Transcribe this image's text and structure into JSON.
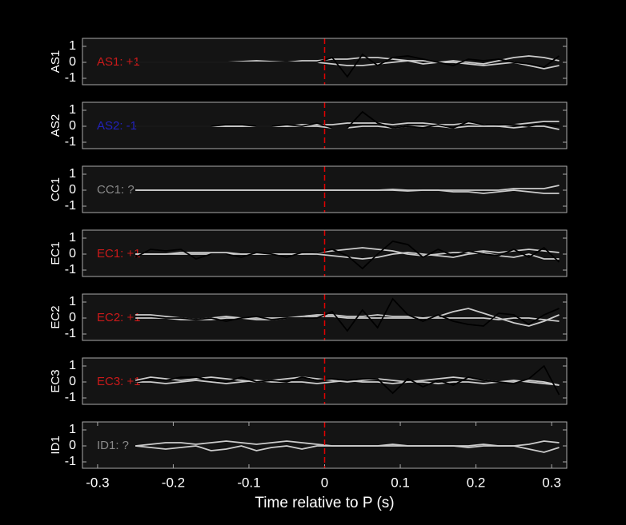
{
  "chart_data": [
    {
      "type": "line",
      "ylabel": "AS1",
      "annotation": "AS1: +1",
      "annotation_color": "#cc1a1a",
      "xlim": [
        -0.32,
        0.32
      ],
      "ylim": [
        -1.4,
        1.5
      ],
      "yticks": [
        -1,
        0,
        1
      ],
      "vline": 0,
      "vline_color": "#e00000",
      "x": [
        -0.25,
        -0.23,
        -0.21,
        -0.19,
        -0.17,
        -0.15,
        -0.13,
        -0.11,
        -0.09,
        -0.07,
        -0.05,
        -0.03,
        -0.01,
        0.01,
        0.03,
        0.05,
        0.07,
        0.09,
        0.11,
        0.13,
        0.15,
        0.17,
        0.19,
        0.21,
        0.23,
        0.25,
        0.27,
        0.29,
        0.31
      ],
      "series": [
        {
          "color": "#cccccc",
          "values": [
            0,
            0,
            0,
            0,
            0,
            0,
            0,
            0.05,
            0.1,
            0.05,
            0,
            0.1,
            0.1,
            0.2,
            0.2,
            0.3,
            0.3,
            0.2,
            0.1,
            -0.1,
            0,
            0.1,
            0,
            -0.1,
            0.1,
            0.3,
            0.4,
            0.3,
            0.1
          ]
        },
        {
          "color": "#cccccc",
          "values": [
            0,
            0,
            0,
            0,
            0,
            0,
            0,
            0,
            0,
            0,
            0,
            0,
            0,
            -0.1,
            -0.2,
            -0.2,
            -0.1,
            0,
            0.1,
            0.1,
            0,
            0,
            -0.1,
            -0.2,
            -0.1,
            0,
            -0.2,
            -0.4,
            -0.2
          ]
        },
        {
          "color": "#000000",
          "values": [
            0,
            0,
            0,
            0,
            0,
            0,
            0,
            0,
            0,
            0,
            0,
            0,
            0,
            0.3,
            -0.9,
            0.5,
            -0.2,
            0.3,
            0.4,
            0.2,
            0,
            -0.2,
            0.2,
            0.1,
            0.2,
            0,
            -0.1,
            -0.3,
            0.4
          ]
        }
      ]
    },
    {
      "type": "line",
      "ylabel": "AS2",
      "annotation": "AS2: -1",
      "annotation_color": "#2222bb",
      "xlim": [
        -0.32,
        0.32
      ],
      "ylim": [
        -1.4,
        1.5
      ],
      "yticks": [
        -1,
        0,
        1
      ],
      "vline": 0,
      "vline_color": "#e00000",
      "x": [
        -0.25,
        -0.23,
        -0.21,
        -0.19,
        -0.17,
        -0.15,
        -0.13,
        -0.11,
        -0.09,
        -0.07,
        -0.05,
        -0.03,
        -0.01,
        0.01,
        0.03,
        0.05,
        0.07,
        0.09,
        0.11,
        0.13,
        0.15,
        0.17,
        0.19,
        0.21,
        0.23,
        0.25,
        0.27,
        0.29,
        0.31
      ],
      "series": [
        {
          "color": "#cccccc",
          "values": [
            0,
            0,
            0,
            0,
            0,
            0,
            0,
            0,
            0,
            0,
            0,
            0.1,
            0.1,
            0.1,
            0.2,
            0.2,
            0.2,
            0.1,
            0.2,
            0.2,
            0.1,
            0.1,
            0.2,
            0.1,
            0,
            0.1,
            0.2,
            0.3,
            0.3
          ]
        },
        {
          "color": "#cccccc",
          "values": [
            0,
            0,
            0,
            0,
            0,
            0,
            0,
            0,
            0,
            0,
            0,
            0,
            0,
            -0.1,
            -0.1,
            0,
            0,
            -0.1,
            0,
            0,
            0,
            -0.1,
            0,
            0,
            0,
            -0.1,
            0,
            0,
            -0.2
          ]
        },
        {
          "color": "#000000",
          "values": [
            0,
            0,
            0,
            0,
            0,
            0,
            0.1,
            0.1,
            0,
            0,
            0.1,
            0,
            0.2,
            -0.1,
            -0.1,
            0.9,
            0.2,
            -0.1,
            0,
            -0.1,
            0.1,
            -0.1,
            0.3,
            0.1,
            0.1,
            0.1,
            0,
            0.2,
            0
          ]
        }
      ]
    },
    {
      "type": "line",
      "ylabel": "CC1",
      "annotation": "CC1: ?",
      "annotation_color": "#8a8a8a",
      "xlim": [
        -0.32,
        0.32
      ],
      "ylim": [
        -1.4,
        1.5
      ],
      "yticks": [
        -1,
        0,
        1
      ],
      "vline": 0,
      "vline_color": "#e00000",
      "x": [
        -0.25,
        -0.23,
        -0.21,
        -0.19,
        -0.17,
        -0.15,
        -0.13,
        -0.11,
        -0.09,
        -0.07,
        -0.05,
        -0.03,
        -0.01,
        0.01,
        0.03,
        0.05,
        0.07,
        0.09,
        0.11,
        0.13,
        0.15,
        0.17,
        0.19,
        0.21,
        0.23,
        0.25,
        0.27,
        0.29,
        0.31
      ],
      "series": [
        {
          "color": "#cccccc",
          "values": [
            0,
            0,
            0,
            0,
            0,
            0,
            0,
            0,
            0,
            0,
            0,
            0,
            0,
            0,
            0,
            0,
            0,
            0.05,
            0,
            0,
            0,
            0,
            0,
            0,
            0,
            0.1,
            0.1,
            0.1,
            0.3
          ]
        },
        {
          "color": "#cccccc",
          "values": [
            0,
            0,
            0,
            0,
            0,
            0,
            0,
            0,
            0,
            0,
            0,
            0,
            0,
            0,
            0,
            0,
            0,
            0,
            -0.05,
            0,
            0,
            -0.1,
            -0.1,
            -0.2,
            -0.1,
            0,
            -0.1,
            -0.2,
            -0.2
          ]
        }
      ]
    },
    {
      "type": "line",
      "ylabel": "EC1",
      "annotation": "EC1: +1",
      "annotation_color": "#cc1a1a",
      "xlim": [
        -0.32,
        0.32
      ],
      "ylim": [
        -1.4,
        1.5
      ],
      "yticks": [
        -1,
        0,
        1
      ],
      "vline": 0,
      "vline_color": "#e00000",
      "x": [
        -0.25,
        -0.23,
        -0.21,
        -0.19,
        -0.17,
        -0.15,
        -0.13,
        -0.11,
        -0.09,
        -0.07,
        -0.05,
        -0.03,
        -0.01,
        0.01,
        0.03,
        0.05,
        0.07,
        0.09,
        0.11,
        0.13,
        0.15,
        0.17,
        0.19,
        0.21,
        0.23,
        0.25,
        0.27,
        0.29,
        0.31
      ],
      "series": [
        {
          "color": "#cccccc",
          "values": [
            0,
            0,
            0,
            0.1,
            0.1,
            0.1,
            0.1,
            0,
            0,
            0,
            0,
            0,
            0.1,
            0.2,
            0.3,
            0.4,
            0.3,
            0.2,
            0,
            -0.1,
            0,
            0.1,
            0.1,
            0.2,
            0.1,
            0.2,
            0.3,
            0.2,
            0.1
          ]
        },
        {
          "color": "#cccccc",
          "values": [
            0,
            0,
            0,
            0,
            0,
            0,
            0,
            0,
            0,
            0,
            0,
            0,
            0,
            -0.1,
            -0.2,
            -0.3,
            -0.2,
            0,
            0.1,
            0,
            -0.1,
            -0.2,
            0,
            0.1,
            -0.1,
            -0.2,
            0,
            -0.3,
            -0.3
          ]
        },
        {
          "color": "#000000",
          "values": [
            -0.2,
            0.3,
            0.2,
            0.3,
            -0.3,
            0,
            0,
            -0.2,
            0.1,
            0,
            -0.2,
            0.1,
            0.1,
            0.3,
            -0.1,
            -0.9,
            0,
            0.8,
            0.6,
            -0.2,
            0.3,
            -0.1,
            0.2,
            0,
            -0.1,
            0.3,
            -0.2,
            0.4,
            -0.5
          ]
        }
      ]
    },
    {
      "type": "line",
      "ylabel": "EC2",
      "annotation": "EC2: +1",
      "annotation_color": "#cc1a1a",
      "xlim": [
        -0.32,
        0.32
      ],
      "ylim": [
        -1.4,
        1.5
      ],
      "yticks": [
        -1,
        0,
        1
      ],
      "vline": 0,
      "vline_color": "#e00000",
      "x": [
        -0.25,
        -0.23,
        -0.21,
        -0.19,
        -0.17,
        -0.15,
        -0.13,
        -0.11,
        -0.09,
        -0.07,
        -0.05,
        -0.03,
        -0.01,
        0.01,
        0.03,
        0.05,
        0.07,
        0.09,
        0.11,
        0.13,
        0.15,
        0.17,
        0.19,
        0.21,
        0.23,
        0.25,
        0.27,
        0.29,
        0.31
      ],
      "series": [
        {
          "color": "#cccccc",
          "values": [
            0.2,
            0.2,
            0.1,
            0,
            -0.1,
            0,
            0.1,
            0,
            -0.1,
            -0.1,
            0,
            0.1,
            0.2,
            0.2,
            0.1,
            0.1,
            0.2,
            0.1,
            0.1,
            0,
            0.1,
            0.4,
            0.6,
            0.3,
            0,
            -0.3,
            -0.5,
            -0.2,
            0.2
          ]
        },
        {
          "color": "#cccccc",
          "values": [
            0,
            0,
            0,
            -0.1,
            -0.1,
            -0.1,
            0,
            0,
            0,
            0,
            0,
            0,
            0.1,
            0.1,
            0,
            0,
            0,
            0,
            0,
            0,
            0,
            0,
            0,
            0,
            -0.1,
            0,
            0,
            -0.1,
            -0.2
          ]
        },
        {
          "color": "#000000",
          "values": [
            0.1,
            0.1,
            0,
            0,
            -0.1,
            0,
            -0.2,
            0,
            0.1,
            -0.1,
            0,
            0,
            0,
            0.4,
            -0.8,
            0.5,
            -0.6,
            1.2,
            0.2,
            -0.2,
            0.2,
            -0.2,
            -0.4,
            -0.5,
            0.3,
            0.2,
            -0.4,
            0.2,
            0.6
          ]
        }
      ]
    },
    {
      "type": "line",
      "ylabel": "EC3",
      "annotation": "EC3: +1",
      "annotation_color": "#cc1a1a",
      "xlim": [
        -0.32,
        0.32
      ],
      "ylim": [
        -1.4,
        1.5
      ],
      "yticks": [
        -1,
        0,
        1
      ],
      "vline": 0,
      "vline_color": "#e00000",
      "x": [
        -0.25,
        -0.23,
        -0.21,
        -0.19,
        -0.17,
        -0.15,
        -0.13,
        -0.11,
        -0.09,
        -0.07,
        -0.05,
        -0.03,
        -0.01,
        0.01,
        0.03,
        0.05,
        0.07,
        0.09,
        0.11,
        0.13,
        0.15,
        0.17,
        0.19,
        0.21,
        0.23,
        0.25,
        0.27,
        0.29,
        0.31
      ],
      "series": [
        {
          "color": "#cccccc",
          "values": [
            0.1,
            0.3,
            0.2,
            0.1,
            0.2,
            0.3,
            0.2,
            0.1,
            0,
            0.1,
            0.2,
            0.3,
            0.2,
            0.1,
            0,
            0.1,
            0.2,
            0.1,
            0,
            0.1,
            0.2,
            0.3,
            0.2,
            0.1,
            0,
            0,
            0.1,
            0,
            -0.2
          ]
        },
        {
          "color": "#cccccc",
          "values": [
            0,
            0,
            -0.1,
            0,
            0.1,
            0,
            -0.1,
            0,
            0.1,
            0,
            0,
            0,
            -0.1,
            0,
            0.1,
            0,
            0,
            -0.1,
            0,
            0,
            -0.1,
            0,
            0,
            -0.1,
            0,
            0.1,
            0,
            -0.1,
            -0.2
          ]
        },
        {
          "color": "#000000",
          "values": [
            0,
            0.2,
            0.1,
            0.3,
            0.3,
            0.1,
            0,
            0.3,
            0,
            0.1,
            0,
            0.3,
            0.1,
            0.2,
            0.1,
            0.2,
            0.2,
            -0.7,
            0.2,
            -0.3,
            0.1,
            -0.2,
            0.3,
            0.1,
            0,
            -0.1,
            0.2,
            1.0,
            -0.8
          ]
        }
      ]
    },
    {
      "type": "line",
      "ylabel": "ID1",
      "annotation": "ID1: ?",
      "annotation_color": "#8a8a8a",
      "xlim": [
        -0.32,
        0.32
      ],
      "ylim": [
        -1.4,
        1.5
      ],
      "yticks": [
        -1,
        0,
        1
      ],
      "vline": 0,
      "vline_color": "#e00000",
      "xlabel": "Time relative to P (s)",
      "xticks": [
        -0.3,
        -0.2,
        -0.1,
        0,
        0.1,
        0.2,
        0.3
      ],
      "x": [
        -0.25,
        -0.23,
        -0.21,
        -0.19,
        -0.17,
        -0.15,
        -0.13,
        -0.11,
        -0.09,
        -0.07,
        -0.05,
        -0.03,
        -0.01,
        0.01,
        0.03,
        0.05,
        0.07,
        0.09,
        0.11,
        0.13,
        0.15,
        0.17,
        0.19,
        0.21,
        0.23,
        0.25,
        0.27,
        0.29,
        0.31
      ],
      "series": [
        {
          "color": "#cccccc",
          "values": [
            0,
            0.1,
            0.2,
            0.2,
            0.1,
            0.2,
            0.3,
            0.2,
            0.1,
            0.2,
            0.3,
            0.2,
            0.1,
            0,
            0,
            0,
            0,
            0.1,
            0,
            0,
            0,
            0,
            0,
            0.1,
            0,
            0,
            0.1,
            0.3,
            0.2
          ]
        },
        {
          "color": "#cccccc",
          "values": [
            0,
            -0.1,
            -0.2,
            -0.1,
            0,
            -0.3,
            -0.2,
            0,
            -0.3,
            -0.1,
            0,
            -0.2,
            0,
            0,
            0,
            0,
            0,
            0,
            0,
            0,
            0,
            0,
            -0.1,
            0,
            0,
            0,
            -0.2,
            -0.4,
            -0.1
          ]
        }
      ]
    }
  ]
}
